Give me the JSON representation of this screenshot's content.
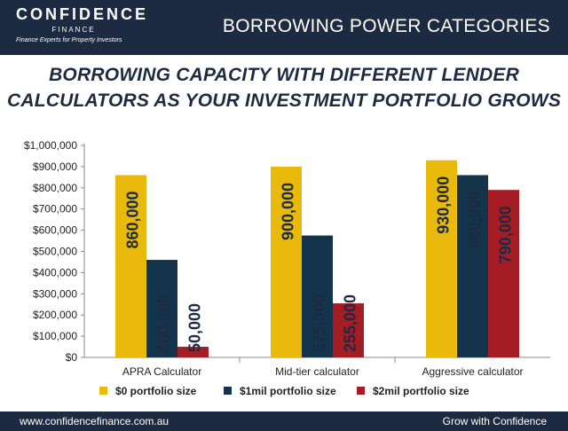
{
  "header": {
    "brand_name": "CONFIDENCE",
    "brand_sub": "FINANCE",
    "brand_tagline": "Finance Experts for Property Investors",
    "title": "BORROWING POWER CATEGORIES"
  },
  "main_title_line1": "BORROWING CAPACITY WITH DIFFERENT LENDER",
  "main_title_line2": "CALCULATORS AS YOUR INVESTMENT PORTFOLIO GROWS",
  "chart_data": {
    "type": "bar",
    "categories": [
      "APRA Calculator",
      "Mid-tier calculator",
      "Aggressive calculator"
    ],
    "series": [
      {
        "name": "$0 portfolio size",
        "values": [
          860000,
          900000,
          930000
        ],
        "labels": [
          "860,000",
          "900,000",
          "930,000"
        ],
        "color": "#e9b90b"
      },
      {
        "name": "$1mil portfolio size",
        "values": [
          460000,
          575000,
          860000
        ],
        "labels": [
          "460,000",
          "575,000",
          "860,000"
        ],
        "color": "#14344c"
      },
      {
        "name": "$2mil portfolio size",
        "values": [
          50000,
          255000,
          790000
        ],
        "labels": [
          "50,000",
          "255,000",
          "790,000"
        ],
        "color": "#a51d24"
      }
    ],
    "yticks": [
      "$0",
      "$100,000",
      "$200,000",
      "$300,000",
      "$400,000",
      "$500,000",
      "$600,000",
      "$700,000",
      "$800,000",
      "$900,000",
      "$1,000,000"
    ],
    "ylim": [
      0,
      1000000
    ],
    "grid": false,
    "legend_position": "bottom"
  },
  "footer": {
    "url": "www.confidencefinance.com.au",
    "tagline": "Grow with Confidence"
  }
}
